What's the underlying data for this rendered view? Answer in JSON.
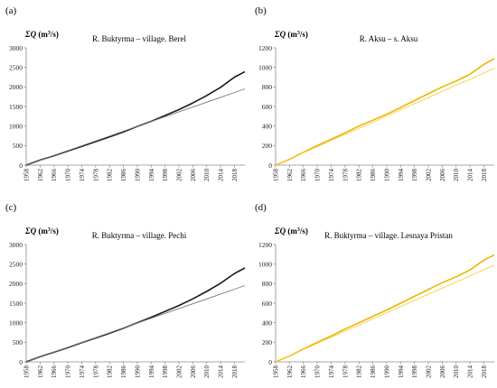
{
  "figure": {
    "ylabel_prefix": "ΣQ",
    "ylabel_unit_pre": " (m",
    "ylabel_unit_sup": "3",
    "ylabel_unit_post": "/s)"
  },
  "chart_data": [
    {
      "panel_label": "(a)",
      "type": "line",
      "title": "R. Buktyrma – village. Berel",
      "xlabel": "",
      "ylabel": "ΣQ (m³/s)",
      "xlim": [
        1958,
        2021
      ],
      "ylim": [
        0,
        3000
      ],
      "x_ticks": [
        "1958",
        "1962",
        "1966",
        "1970",
        "1974",
        "1978",
        "1982",
        "1986",
        "1990",
        "1994",
        "1998",
        "2002",
        "2006",
        "2010",
        "2014",
        "2018"
      ],
      "y_ticks": [
        "0",
        "500",
        "1000",
        "1500",
        "2000",
        "2500",
        "3000"
      ],
      "color": "#1a1a1a",
      "trend_color": "#7a7a7a",
      "grid": false,
      "series": [
        {
          "kind": "cumulative",
          "points": [
            [
              1958,
              0
            ],
            [
              1962,
              130
            ],
            [
              1966,
              240
            ],
            [
              1970,
              360
            ],
            [
              1974,
              480
            ],
            [
              1978,
              600
            ],
            [
              1982,
              720
            ],
            [
              1986,
              850
            ],
            [
              1990,
              990
            ],
            [
              1994,
              1120
            ],
            [
              1998,
              1270
            ],
            [
              2002,
              1420
            ],
            [
              2006,
              1590
            ],
            [
              2010,
              1780
            ],
            [
              2014,
              1990
            ],
            [
              2018,
              2250
            ],
            [
              2021,
              2390
            ]
          ]
        },
        {
          "kind": "trend",
          "points": [
            [
              1958,
              0
            ],
            [
              2021,
              1950
            ]
          ]
        }
      ]
    },
    {
      "panel_label": "(b)",
      "type": "line",
      "title": "R. Aksu – s. Aksu",
      "xlabel": "",
      "ylabel": "ΣQ (m³/s)",
      "xlim": [
        1958,
        2021
      ],
      "ylim": [
        0,
        1200
      ],
      "x_ticks": [
        "1958",
        "1962",
        "1966",
        "1970",
        "1974",
        "1978",
        "1982",
        "1986",
        "1990",
        "1994",
        "1998",
        "2002",
        "2006",
        "2010",
        "2014",
        "2018"
      ],
      "y_ticks": [
        "0",
        "200",
        "400",
        "600",
        "800",
        "1000",
        "1200"
      ],
      "color": "#f0b400",
      "trend_color": "#f5cf4a",
      "grid": false,
      "series": [
        {
          "kind": "cumulative",
          "points": [
            [
              1958,
              0
            ],
            [
              1962,
              60
            ],
            [
              1966,
              130
            ],
            [
              1970,
              200
            ],
            [
              1974,
              265
            ],
            [
              1978,
              330
            ],
            [
              1982,
              400
            ],
            [
              1986,
              460
            ],
            [
              1990,
              520
            ],
            [
              1994,
              590
            ],
            [
              1998,
              660
            ],
            [
              2002,
              730
            ],
            [
              2006,
              800
            ],
            [
              2010,
              860
            ],
            [
              2014,
              930
            ],
            [
              2018,
              1030
            ],
            [
              2021,
              1090
            ]
          ]
        },
        {
          "kind": "trend",
          "points": [
            [
              1958,
              0
            ],
            [
              2021,
              990
            ]
          ]
        }
      ]
    },
    {
      "panel_label": "(c)",
      "type": "line",
      "title": "R. Buktyrma – village. Pechi",
      "xlabel": "",
      "ylabel": "ΣQ (m³/s)",
      "xlim": [
        1958,
        2021
      ],
      "ylim": [
        0,
        3000
      ],
      "x_ticks": [
        "1958",
        "1962",
        "1966",
        "1970",
        "1974",
        "1978",
        "1982",
        "1986",
        "1990",
        "1994",
        "1998",
        "2002",
        "2006",
        "2010",
        "2014",
        "2018"
      ],
      "y_ticks": [
        "0",
        "500",
        "1000",
        "1500",
        "2000",
        "2500",
        "3000"
      ],
      "color": "#1a1a1a",
      "trend_color": "#7a7a7a",
      "grid": false,
      "series": [
        {
          "kind": "cumulative",
          "points": [
            [
              1958,
              0
            ],
            [
              1962,
              130
            ],
            [
              1966,
              245
            ],
            [
              1970,
              365
            ],
            [
              1974,
              490
            ],
            [
              1978,
              610
            ],
            [
              1982,
              730
            ],
            [
              1986,
              860
            ],
            [
              1990,
              1000
            ],
            [
              1994,
              1140
            ],
            [
              1998,
              1290
            ],
            [
              2002,
              1440
            ],
            [
              2006,
              1610
            ],
            [
              2010,
              1800
            ],
            [
              2014,
              2010
            ],
            [
              2018,
              2260
            ],
            [
              2021,
              2400
            ]
          ]
        },
        {
          "kind": "trend",
          "points": [
            [
              1958,
              0
            ],
            [
              2021,
              1950
            ]
          ]
        }
      ]
    },
    {
      "panel_label": "(d)",
      "type": "line",
      "title": "R. Buktyrma – village. Lesnaya Pristan",
      "xlabel": "",
      "ylabel": "ΣQ (m³/s)",
      "xlim": [
        1958,
        2021
      ],
      "ylim": [
        0,
        1200
      ],
      "x_ticks": [
        "1958",
        "1962",
        "1966",
        "1970",
        "1974",
        "1978",
        "1982",
        "1986",
        "1990",
        "1994",
        "1998",
        "2002",
        "2006",
        "2010",
        "2014",
        "2018"
      ],
      "y_ticks": [
        "0",
        "200",
        "400",
        "600",
        "800",
        "1000",
        "1200"
      ],
      "color": "#f0b400",
      "trend_color": "#f5cf4a",
      "grid": false,
      "series": [
        {
          "kind": "cumulative",
          "points": [
            [
              1958,
              0
            ],
            [
              1962,
              60
            ],
            [
              1966,
              130
            ],
            [
              1970,
              200
            ],
            [
              1974,
              265
            ],
            [
              1978,
              335
            ],
            [
              1982,
              400
            ],
            [
              1986,
              465
            ],
            [
              1990,
              530
            ],
            [
              1994,
              600
            ],
            [
              1998,
              670
            ],
            [
              2002,
              740
            ],
            [
              2006,
              810
            ],
            [
              2010,
              870
            ],
            [
              2014,
              940
            ],
            [
              2018,
              1040
            ],
            [
              2021,
              1095
            ]
          ]
        },
        {
          "kind": "trend",
          "points": [
            [
              1958,
              0
            ],
            [
              2021,
              990
            ]
          ]
        }
      ]
    }
  ]
}
